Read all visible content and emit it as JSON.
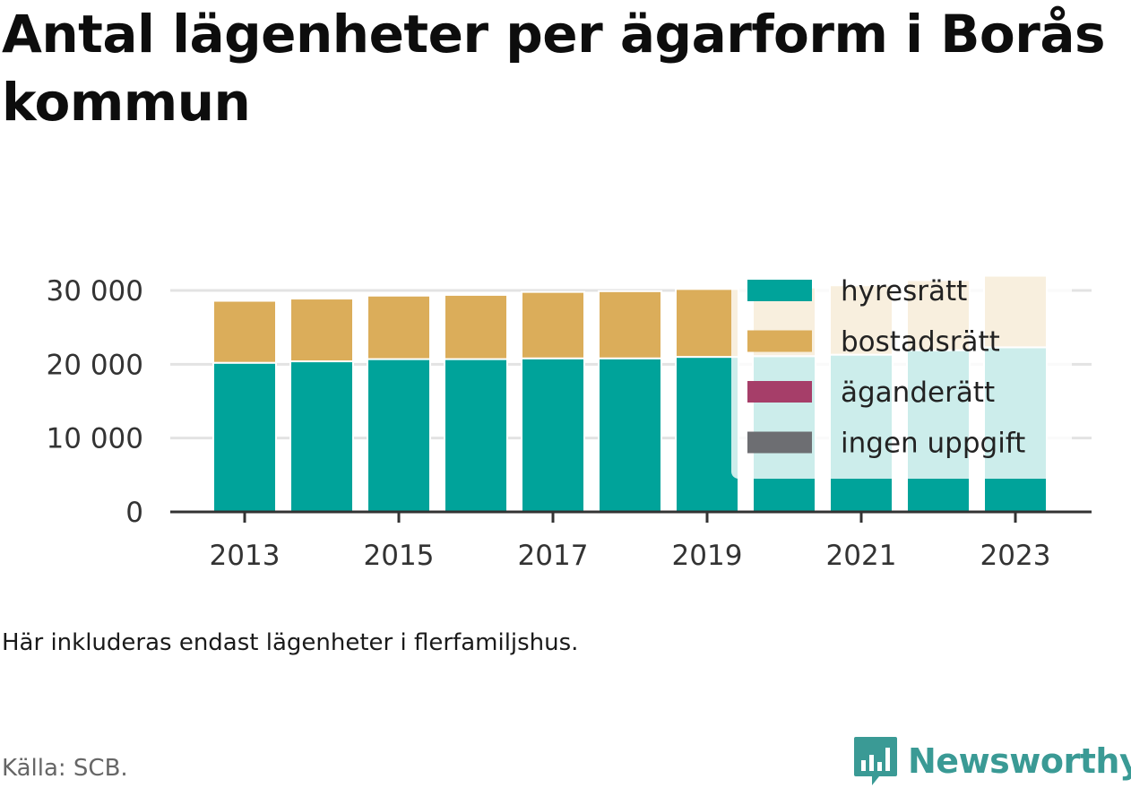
{
  "title": "Antal lägenheter per ägarform i Borås kommun",
  "note": "Här inkluderas endast lägenheter i flerfamiljshus.",
  "source": "Källa: SCB.",
  "brand": {
    "name": "Newsworthy",
    "icon": "newsworthy-logo-icon",
    "color": "#3a9a95"
  },
  "chart_data": {
    "type": "bar",
    "stacked": true,
    "categories": [
      "2013",
      "2014",
      "2015",
      "2016",
      "2017",
      "2018",
      "2019",
      "2020",
      "2021",
      "2022",
      "2023"
    ],
    "x_tick_labels": [
      "2013",
      "2015",
      "2017",
      "2019",
      "2021",
      "2023"
    ],
    "y_ticks": [
      0,
      10000,
      20000,
      30000
    ],
    "y_tick_labels": [
      "0",
      "10 000",
      "20 000",
      "30 000"
    ],
    "ylim": [
      0,
      32000
    ],
    "grid": true,
    "legend": {
      "placement": "top-right"
    },
    "series": [
      {
        "name": "hyresrätt",
        "color": "#00a39a",
        "values": [
          20200,
          20400,
          20700,
          20700,
          20800,
          20800,
          21000,
          21100,
          21300,
          21900,
          22300
        ]
      },
      {
        "name": "bostadsrätt",
        "color": "#dbad5a",
        "values": [
          8400,
          8500,
          8600,
          8700,
          9000,
          9100,
          9200,
          9300,
          9400,
          9500,
          9700
        ]
      },
      {
        "name": "äganderätt",
        "color": "#a63e69",
        "values": [
          0,
          0,
          0,
          0,
          0,
          0,
          0,
          0,
          0,
          0,
          0
        ]
      },
      {
        "name": "ingen uppgift",
        "color": "#6d6e72",
        "values": [
          0,
          0,
          0,
          0,
          0,
          0,
          0,
          0,
          0,
          0,
          0
        ]
      }
    ]
  }
}
